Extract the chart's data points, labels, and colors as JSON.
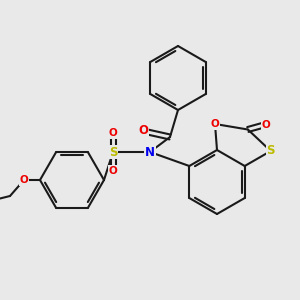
{
  "background_color": "#e9e9e9",
  "line_color": "#1a1a1a",
  "bond_width": 1.5,
  "atom_colors": {
    "N": "#0000ee",
    "O": "#ee0000",
    "S": "#bbbb00",
    "C": "#1a1a1a"
  },
  "font_size": 7.5
}
